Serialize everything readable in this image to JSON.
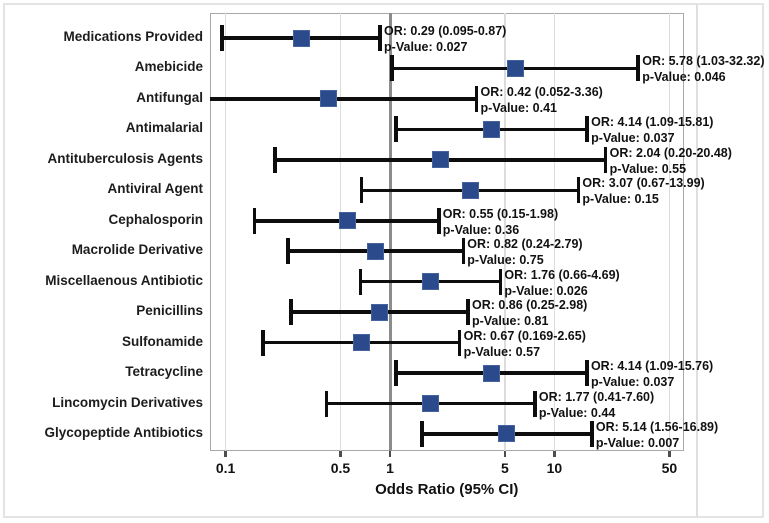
{
  "figure": {
    "colors": {
      "marker_fill": "#2a4a8b",
      "marker_border": "#46639e",
      "ci_line": "#0d0d0d",
      "grid": "#dcdcdc",
      "reference_line": "#8c8c8c",
      "frame": "#a8a8a8",
      "text": "#111111"
    }
  },
  "chart_data": {
    "type": "forest",
    "title": "",
    "xlabel": "Odds Ratio (95% CI)",
    "x_scale": "log",
    "xlim": [
      0.08,
      61
    ],
    "grid": true,
    "reference_line": 1,
    "x_ticks": [
      {
        "v": 0.1,
        "label": "0.1"
      },
      {
        "v": 0.5,
        "label": "0.5"
      },
      {
        "v": 1,
        "label": "1"
      },
      {
        "v": 5,
        "label": "5"
      },
      {
        "v": 10,
        "label": "10"
      },
      {
        "v": 50,
        "label": "50"
      }
    ],
    "rows": [
      {
        "label": "Medications Provided",
        "or": 0.29,
        "ci_low": 0.095,
        "ci_high": 0.87,
        "p": "0.027",
        "or_text": "OR: 0.29 (0.095-0.87)",
        "p_text": "p-Value: 0.027"
      },
      {
        "label": "Amebicide",
        "or": 5.78,
        "ci_low": 1.03,
        "ci_high": 32.32,
        "p": "0.046",
        "or_text": "OR: 5.78 (1.03-32.32)",
        "p_text": "p-Value: 0.046"
      },
      {
        "label": "Antifungal",
        "or": 0.42,
        "ci_low": 0.052,
        "ci_high": 3.36,
        "p": "0.41",
        "or_text": "OR: 0.42 (0.052-3.36)",
        "p_text": "p-Value: 0.41"
      },
      {
        "label": "Antimalarial",
        "or": 4.14,
        "ci_low": 1.09,
        "ci_high": 15.81,
        "p": "0.037",
        "or_text": "OR: 4.14 (1.09-15.81)",
        "p_text": "p-Value: 0.037"
      },
      {
        "label": "Antituberculosis Agents",
        "or": 2.04,
        "ci_low": 0.2,
        "ci_high": 20.48,
        "p": "0.55",
        "or_text": "OR: 2.04 (0.20-20.48)",
        "p_text": "p-Value: 0.55"
      },
      {
        "label": "Antiviral Agent",
        "or": 3.07,
        "ci_low": 0.67,
        "ci_high": 13.99,
        "p": "0.15",
        "or_text": "OR: 3.07 (0.67-13.99)",
        "p_text": "p-Value: 0.15"
      },
      {
        "label": "Cephalosporin",
        "or": 0.55,
        "ci_low": 0.15,
        "ci_high": 1.98,
        "p": "0.36",
        "or_text": "OR: 0.55 (0.15-1.98)",
        "p_text": "p-Value: 0.36"
      },
      {
        "label": "Macrolide Derivative",
        "or": 0.82,
        "ci_low": 0.24,
        "ci_high": 2.79,
        "p": "0.75",
        "or_text": "OR: 0.82 (0.24-2.79)",
        "p_text": "p-Value: 0.75"
      },
      {
        "label": "Miscellaenous Antibiotic",
        "or": 1.76,
        "ci_low": 0.66,
        "ci_high": 4.69,
        "p": "0.026",
        "or_text": "OR: 1.76 (0.66-4.69)",
        "p_text": "p-Value: 0.026"
      },
      {
        "label": "Penicillins",
        "or": 0.86,
        "ci_low": 0.25,
        "ci_high": 2.98,
        "p": "0.81",
        "or_text": "OR: 0.86 (0.25-2.98)",
        "p_text": "p-Value: 0.81"
      },
      {
        "label": "Sulfonamide",
        "or": 0.67,
        "ci_low": 0.169,
        "ci_high": 2.65,
        "p": "0.57",
        "or_text": "OR: 0.67 (0.169-2.65)",
        "p_text": "p-Value: 0.57"
      },
      {
        "label": "Tetracycline",
        "or": 4.14,
        "ci_low": 1.09,
        "ci_high": 15.76,
        "p": "0.037",
        "or_text": "OR: 4.14 (1.09-15.76)",
        "p_text": "p-Value: 0.037"
      },
      {
        "label": "Lincomycin Derivatives",
        "or": 1.77,
        "ci_low": 0.41,
        "ci_high": 7.6,
        "p": "0.44",
        "or_text": "OR: 1.77 (0.41-7.60)",
        "p_text": "p-Value: 0.44"
      },
      {
        "label": "Glycopeptide Antibiotics",
        "or": 5.14,
        "ci_low": 1.56,
        "ci_high": 16.89,
        "p": "0.007",
        "or_text": "OR: 5.14 (1.56-16.89)",
        "p_text": "p-Value: 0.007"
      }
    ]
  }
}
